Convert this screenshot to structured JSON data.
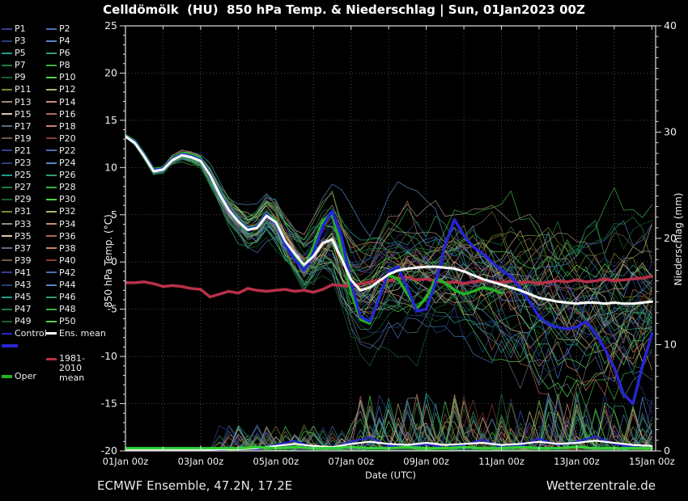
{
  "title": "Celldömölk  (HU)  850 hPa Temp. & Niederschlag | Sun, 01Jan2023 00Z",
  "footer": {
    "left": "ECMWF Ensemble, 47.2N, 17.2E",
    "right": "Wetterzentrale.de"
  },
  "legend": {
    "members": [
      "P1",
      "P2",
      "P3",
      "P4",
      "P5",
      "P6",
      "P7",
      "P8",
      "P9",
      "P10",
      "P11",
      "P12",
      "P13",
      "P14",
      "P15",
      "P16",
      "P17",
      "P18",
      "P19",
      "P20",
      "P21",
      "P22",
      "P23",
      "P24",
      "P25",
      "P26",
      "P27",
      "P28",
      "P29",
      "P30",
      "P31",
      "P32",
      "P33",
      "P34",
      "P35",
      "P36",
      "P37",
      "P38",
      "P39",
      "P40",
      "P41",
      "P42",
      "P43",
      "P44",
      "P45",
      "P46",
      "P47",
      "P48",
      "P49",
      "P50"
    ],
    "control_label": "Control",
    "ens_mean_label": "Ens. mean",
    "climate_label_line1": "1981-2010",
    "climate_label_line2": "mean",
    "oper_label": "Oper"
  },
  "colors": {
    "background": "#000000",
    "frame": "#e0e0e0",
    "grid": "#4a4a4a",
    "text": "#f0f0f0",
    "ens_mean": "#ffffff",
    "control": "#2626d2",
    "oper": "#22b322",
    "climate": "#b83048"
  },
  "chart_data": {
    "type": "line",
    "title": "Celldömölk  (HU)  850 hPa Temp. & Niederschlag | Sun, 01Jan2023 00Z",
    "xlabel": "Date (UTC)",
    "ylabel_left": "850 hPa Temp. (°C)",
    "ylabel_right": "Niederschlag (mm)",
    "x_range_days": [
      0,
      14.1
    ],
    "x_tick_days": [
      0,
      2,
      4,
      6,
      8,
      10,
      12,
      14
    ],
    "x_tick_labels": [
      "01Jan 00z",
      "03Jan 00z",
      "05Jan 00z",
      "07Jan 00z",
      "09Jan 00z",
      "11Jan 00z",
      "13Jan 00z",
      "15Jan 00z"
    ],
    "y_left_range": [
      -20,
      25
    ],
    "y_left_ticks": [
      25,
      20,
      15,
      10,
      5,
      0,
      -5,
      -10,
      -15,
      -20
    ],
    "y_right_range": [
      0,
      40
    ],
    "y_right_ticks": [
      40,
      30,
      20,
      10,
      0
    ],
    "grid": "dotted, vertical every 1 day, horizontal every 5 °C",
    "legend_position": "left margin",
    "series": [
      {
        "name": "Ens. mean",
        "role": "ens_mean",
        "color": "#ffffff",
        "width": 3,
        "x_start": 0,
        "x_step": 0.25,
        "values": [
          13.3,
          12.6,
          11.2,
          9.6,
          9.8,
          10.8,
          11.3,
          11.1,
          10.7,
          9.2,
          7.2,
          5.5,
          4.3,
          3.4,
          3.6,
          4.9,
          4.2,
          2.2,
          0.9,
          -0.3,
          0.6,
          2.0,
          2.4,
          0.3,
          -1.9,
          -3.0,
          -2.7,
          -2.0,
          -1.3,
          -0.9,
          -0.7,
          -0.6,
          -0.5,
          -0.5,
          -0.6,
          -0.7,
          -1.0,
          -1.4,
          -1.8,
          -2.1,
          -2.4,
          -2.7,
          -3.0,
          -3.4,
          -3.8,
          -4.0,
          -4.2,
          -4.3,
          -4.4,
          -4.3,
          -4.3,
          -4.4,
          -4.3,
          -4.4,
          -4.4,
          -4.3,
          -4.2
        ]
      },
      {
        "name": "Control",
        "role": "control",
        "color": "#2626d2",
        "width": 3.5,
        "x_start": 0,
        "x_step": 0.25,
        "values": [
          13.3,
          12.7,
          11.3,
          9.7,
          9.9,
          10.9,
          11.4,
          11.2,
          10.8,
          9.3,
          7.3,
          5.6,
          4.4,
          3.5,
          3.7,
          5.1,
          4.1,
          1.8,
          0.3,
          -0.9,
          1.0,
          3.8,
          5.4,
          2.6,
          -2.2,
          -5.8,
          -6.3,
          -3.8,
          -1.0,
          -0.5,
          -2.8,
          -5.2,
          -5.0,
          -2.2,
          1.8,
          4.5,
          2.8,
          1.6,
          0.9,
          0.0,
          -0.9,
          -1.5,
          -2.8,
          -4.2,
          -5.8,
          -6.6,
          -6.9,
          -7.1,
          -6.9,
          -6.3,
          -7.6,
          -9.2,
          -11.2,
          -14.0,
          -15.0,
          -11.0,
          -7.6
        ]
      },
      {
        "name": "Oper",
        "role": "oper",
        "color": "#22b322",
        "width": 3.5,
        "x_start": 0,
        "x_step": 0.25,
        "values": [
          13.4,
          12.8,
          11.4,
          9.8,
          10.0,
          11.0,
          11.5,
          11.3,
          10.9,
          9.4,
          7.4,
          5.7,
          4.5,
          3.6,
          3.8,
          5.2,
          4.3,
          2.0,
          0.6,
          -0.6,
          1.6,
          4.4,
          5.0,
          1.4,
          -3.2,
          -6.1,
          -6.5,
          -3.6,
          -1.4,
          -1.8,
          -3.4,
          -4.9,
          -3.8,
          -1.8,
          -2.2,
          -3.0,
          -3.4,
          -3.1,
          -2.7,
          -2.9,
          -3.3
        ]
      },
      {
        "name": "1981-2010 mean",
        "role": "climate",
        "color": "#b83048",
        "width": 3.5,
        "x_start": 0,
        "x_step": 0.25,
        "values": [
          -2.2,
          -2.2,
          -2.1,
          -2.3,
          -2.6,
          -2.5,
          -2.6,
          -2.8,
          -2.9,
          -3.7,
          -3.4,
          -3.1,
          -3.3,
          -2.8,
          -3.0,
          -3.1,
          -3.0,
          -2.9,
          -3.1,
          -3.0,
          -3.2,
          -2.9,
          -2.4,
          -2.5,
          -2.6,
          -2.3,
          -2.1,
          -1.9,
          -2.0,
          -1.7,
          -1.6,
          -1.9,
          -1.8,
          -2.0,
          -2.2,
          -2.1,
          -2.3,
          -2.1,
          -1.9,
          -2.1,
          -2.2,
          -2.0,
          -2.2,
          -2.1,
          -2.3,
          -2.1,
          -2.0,
          -2.1,
          -1.9,
          -2.1,
          -2.0,
          -1.8,
          -2.0,
          -1.9,
          -1.8,
          -1.7,
          -1.5
        ]
      }
    ],
    "precip_series": [
      {
        "name": "Ens. mean precip",
        "role": "ens_mean",
        "color": "#ffffff",
        "width": 2.2,
        "x_start": 0,
        "x_step": 0.5,
        "values": [
          0,
          0,
          0,
          0,
          0,
          0.1,
          0.1,
          0.2,
          0.4,
          0.6,
          0.4,
          0.3,
          0.6,
          0.8,
          0.6,
          0.5,
          0.7,
          0.5,
          0.6,
          0.7,
          0.5,
          0.6,
          0.8,
          0.6,
          0.7,
          0.9,
          0.7,
          0.5,
          0.4
        ]
      },
      {
        "name": "Control precip",
        "role": "control",
        "color": "#2626d2",
        "width": 2.2,
        "x_start": 0,
        "x_step": 0.5,
        "values": [
          0,
          0,
          0,
          0,
          0,
          0,
          0.2,
          0.1,
          0.5,
          0.9,
          0.3,
          0.2,
          0.8,
          1.2,
          0.4,
          0.3,
          0.6,
          0.2,
          0.5,
          1.0,
          0.3,
          0.4,
          1.1,
          0.5,
          0.8,
          1.3,
          0.6,
          0.3,
          0.2
        ]
      },
      {
        "name": "Oper precip",
        "role": "oper",
        "color": "#2fd32f",
        "width": 3,
        "x_start": 0,
        "x_step": 0.5,
        "values": [
          0.2,
          0.2,
          0.2,
          0.2,
          0.2,
          0.2,
          0.2,
          0.3,
          0.2,
          0.3,
          0.2,
          0.2,
          0.3,
          0.2,
          0.2,
          0.3,
          0.2,
          0.2,
          0.3,
          0.2,
          0.2,
          0.3,
          0.2,
          0.2,
          0.3,
          0.2,
          0.2,
          0.2,
          0.2
        ]
      }
    ],
    "ensemble": {
      "count": 50,
      "seed": 20230101,
      "temp_spread_by_day": [
        0.15,
        0.4,
        0.7,
        1.7,
        2.4,
        3.0,
        4.2,
        4.8,
        5.2,
        6.0,
        6.5,
        7.0,
        7.2,
        7.5,
        7.8
      ],
      "temp_min_clip": -19.4,
      "palette": [
        "#3a3a9c",
        "#4a6fb5",
        "#26407e",
        "#5585c0",
        "#1f9a8f",
        "#2fa06a",
        "#217a38",
        "#3cb043",
        "#1b5e2f",
        "#4ed44e",
        "#7a8531",
        "#b5b06b",
        "#9a8a7a",
        "#c98f74",
        "#d9c9a9",
        "#b06a50",
        "#5d6b80",
        "#cc7f66",
        "#6e5c49",
        "#8a3838"
      ]
    },
    "precip": {
      "start_day": 2.5,
      "spike_prob": 0.22,
      "max_mm": 5.5
    }
  }
}
